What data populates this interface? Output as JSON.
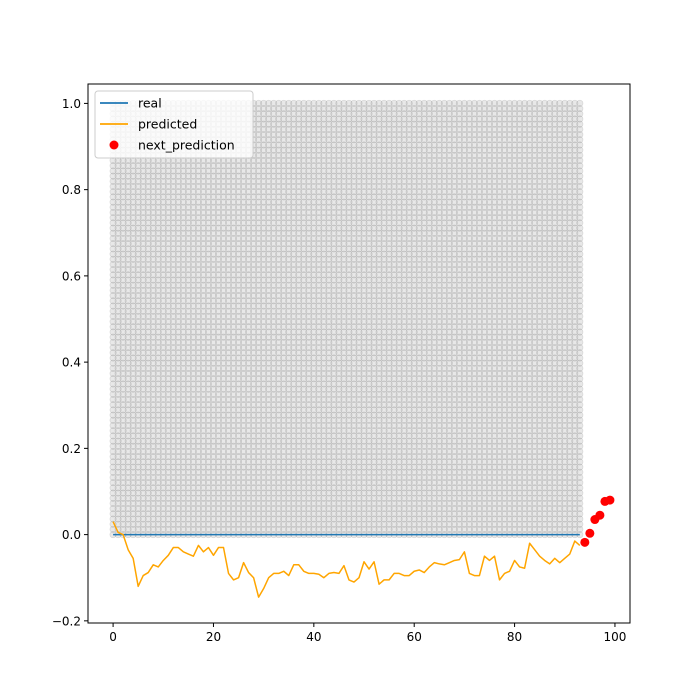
{
  "chart_data": {
    "type": "line",
    "title": "",
    "xlabel": "",
    "ylabel": "",
    "xlim": [
      -5,
      103
    ],
    "ylim": [
      -0.205,
      1.045
    ],
    "x_ticks": [
      0,
      20,
      40,
      60,
      80,
      100
    ],
    "y_ticks": [
      -0.2,
      0.0,
      0.2,
      0.4,
      0.6,
      0.8,
      1.0
    ],
    "legend_position": "top-left",
    "grid": false,
    "background_points": {
      "x_range": [
        0,
        93
      ],
      "y_range": [
        0,
        1
      ],
      "rows": 84,
      "color": "#808080"
    },
    "series": [
      {
        "name": "real",
        "kind": "line",
        "color": "#1f77b4",
        "x": [
          0,
          93
        ],
        "y": [
          0,
          0
        ]
      },
      {
        "name": "predicted",
        "kind": "line",
        "color": "#ffa500",
        "x": [
          0,
          1,
          2,
          3,
          4,
          5,
          6,
          7,
          8,
          9,
          10,
          11,
          12,
          13,
          14,
          15,
          16,
          17,
          18,
          19,
          20,
          21,
          22,
          23,
          24,
          25,
          26,
          27,
          28,
          29,
          30,
          31,
          32,
          33,
          34,
          35,
          36,
          37,
          38,
          39,
          40,
          41,
          42,
          43,
          44,
          45,
          46,
          47,
          48,
          49,
          50,
          51,
          52,
          53,
          54,
          55,
          56,
          57,
          58,
          59,
          60,
          61,
          62,
          63,
          64,
          65,
          66,
          67,
          68,
          69,
          70,
          71,
          72,
          73,
          74,
          75,
          76,
          77,
          78,
          79,
          80,
          81,
          82,
          83,
          84,
          85,
          86,
          87,
          88,
          89,
          90,
          91,
          92,
          93
        ],
        "y": [
          0.03,
          0.005,
          0.0,
          -0.035,
          -0.055,
          -0.12,
          -0.095,
          -0.088,
          -0.07,
          -0.075,
          -0.06,
          -0.048,
          -0.03,
          -0.03,
          -0.04,
          -0.045,
          -0.05,
          -0.025,
          -0.04,
          -0.03,
          -0.048,
          -0.03,
          -0.03,
          -0.09,
          -0.105,
          -0.1,
          -0.065,
          -0.088,
          -0.1,
          -0.145,
          -0.125,
          -0.1,
          -0.09,
          -0.09,
          -0.085,
          -0.095,
          -0.07,
          -0.07,
          -0.085,
          -0.09,
          -0.09,
          -0.092,
          -0.1,
          -0.09,
          -0.088,
          -0.09,
          -0.072,
          -0.105,
          -0.11,
          -0.1,
          -0.063,
          -0.08,
          -0.063,
          -0.115,
          -0.105,
          -0.105,
          -0.09,
          -0.09,
          -0.095,
          -0.095,
          -0.085,
          -0.082,
          -0.088,
          -0.075,
          -0.065,
          -0.068,
          -0.07,
          -0.065,
          -0.06,
          -0.058,
          -0.04,
          -0.09,
          -0.095,
          -0.095,
          -0.05,
          -0.06,
          -0.05,
          -0.105,
          -0.09,
          -0.085,
          -0.06,
          -0.075,
          -0.078,
          -0.02,
          -0.035,
          -0.05,
          -0.06,
          -0.068,
          -0.055,
          -0.065,
          -0.055,
          -0.045,
          -0.015,
          -0.025
        ]
      },
      {
        "name": "next_prediction",
        "kind": "scatter",
        "color": "#ff0000",
        "x": [
          94,
          95,
          96,
          97,
          98,
          99
        ],
        "y": [
          -0.018,
          0.003,
          0.035,
          0.045,
          0.077,
          0.08
        ]
      }
    ]
  }
}
